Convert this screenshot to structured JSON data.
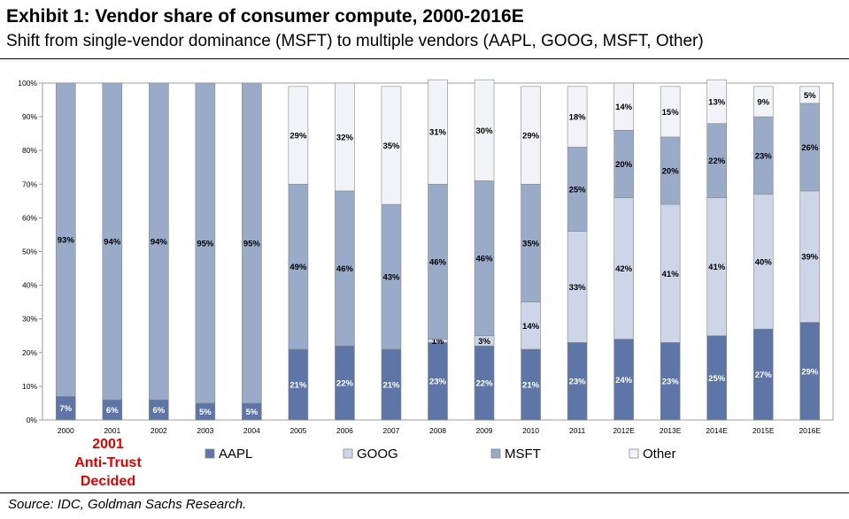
{
  "title": "Exhibit 1: Vendor share of consumer compute, 2000-2016E",
  "subtitle": "Shift from single-vendor dominance (MSFT) to multiple vendors (AAPL, GOOG, MSFT, Other)",
  "annotation": [
    "2001",
    "Anti-Trust",
    "Decided"
  ],
  "source": "Source: IDC, Goldman Sachs Research.",
  "colors": {
    "AAPL": "#5e75a8",
    "GOOG": "#cdd5e8",
    "MSFT": "#9aaac9",
    "Other": "#f1f3f9",
    "annotation": "#e00000"
  },
  "chart_data": {
    "type": "bar",
    "stacked": true,
    "percent": true,
    "categories": [
      "2000",
      "2001",
      "2002",
      "2003",
      "2004",
      "2005",
      "2006",
      "2007",
      "2008",
      "2009",
      "2010",
      "2011",
      "2012E",
      "2013E",
      "2014E",
      "2015E",
      "2016E"
    ],
    "ylim": [
      0,
      100
    ],
    "yticks": [
      "0%",
      "10%",
      "20%",
      "30%",
      "40%",
      "50%",
      "60%",
      "70%",
      "80%",
      "90%",
      "100%"
    ],
    "legend_position": "bottom",
    "series": [
      {
        "name": "AAPL",
        "values": [
          7,
          6,
          6,
          5,
          5,
          21,
          22,
          21,
          23,
          22,
          21,
          23,
          24,
          23,
          25,
          27,
          29
        ],
        "labels": [
          "7%",
          "6%",
          "6%",
          "5%",
          "5%",
          "21%",
          "22%",
          "21%",
          "23%",
          "22%",
          "21%",
          "23%",
          "24%",
          "23%",
          "25%",
          "27%",
          "29%"
        ]
      },
      {
        "name": "GOOG",
        "values": [
          0,
          0,
          0,
          0,
          0,
          0,
          0,
          0,
          1,
          3,
          14,
          33,
          42,
          41,
          41,
          40,
          39
        ],
        "labels": [
          "",
          "",
          "",
          "",
          "",
          "",
          "",
          "",
          "1%",
          "3%",
          "14%",
          "33%",
          "42%",
          "41%",
          "41%",
          "40%",
          "39%"
        ]
      },
      {
        "name": "MSFT",
        "values": [
          93,
          94,
          94,
          95,
          95,
          49,
          46,
          43,
          46,
          46,
          35,
          25,
          20,
          20,
          22,
          23,
          26
        ],
        "labels": [
          "93%",
          "94%",
          "94%",
          "95%",
          "95%",
          "49%",
          "46%",
          "43%",
          "46%",
          "46%",
          "35%",
          "25%",
          "20%",
          "20%",
          "22%",
          "23%",
          "26%"
        ]
      },
      {
        "name": "Other",
        "values": [
          0,
          0,
          0,
          0,
          0,
          29,
          32,
          35,
          31,
          30,
          29,
          18,
          14,
          15,
          13,
          9,
          5
        ],
        "labels": [
          "",
          "",
          "",
          "",
          "",
          "29%",
          "32%",
          "35%",
          "31%",
          "30%",
          "29%",
          "18%",
          "14%",
          "15%",
          "13%",
          "9%",
          "5%"
        ]
      }
    ],
    "legend": [
      "AAPL",
      "GOOG",
      "MSFT",
      "Other"
    ]
  }
}
